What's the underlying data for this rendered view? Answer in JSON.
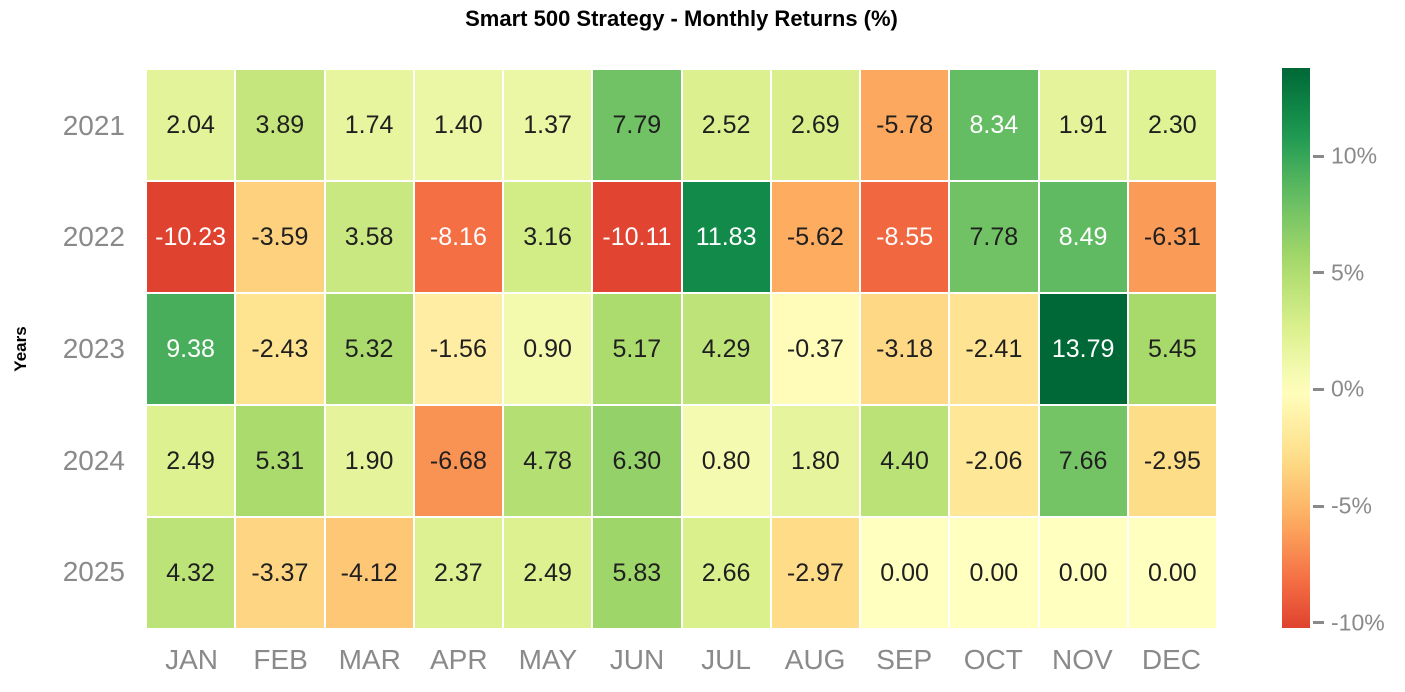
{
  "title": "Smart 500 Strategy - Monthly Returns (%)",
  "colors": {
    "background": "#ffffff",
    "title_text": "#000000",
    "axis_label_text": "#000000",
    "tick_label_text": "#8a8a8a",
    "cell_text_dark": "#1f1f1f",
    "cell_text_light": "#ffffff",
    "cell_gap": "#ffffff"
  },
  "chart_data": {
    "type": "heatmap",
    "title": "Smart 500 Strategy - Monthly Returns (%)",
    "xlabel": "",
    "ylabel": "Years",
    "x_categories": [
      "JAN",
      "FEB",
      "MAR",
      "APR",
      "MAY",
      "JUN",
      "JUL",
      "AUG",
      "SEP",
      "OCT",
      "NOV",
      "DEC"
    ],
    "y_categories": [
      "2021",
      "2022",
      "2023",
      "2024",
      "2025"
    ],
    "values": [
      [
        2.04,
        3.89,
        1.74,
        1.4,
        1.37,
        7.79,
        2.52,
        2.69,
        -5.78,
        8.34,
        1.91,
        2.3
      ],
      [
        -10.23,
        -3.59,
        3.58,
        -8.16,
        3.16,
        -10.11,
        11.83,
        -5.62,
        -8.55,
        7.78,
        8.49,
        -6.31
      ],
      [
        9.38,
        -2.43,
        5.32,
        -1.56,
        0.9,
        5.17,
        4.29,
        -0.37,
        -3.18,
        -2.41,
        13.79,
        5.45
      ],
      [
        2.49,
        5.31,
        1.9,
        -6.68,
        4.78,
        6.3,
        0.8,
        1.8,
        4.4,
        -2.06,
        7.66,
        -2.95
      ],
      [
        4.32,
        -3.37,
        -4.12,
        2.37,
        2.49,
        5.83,
        2.66,
        -2.97,
        0.0,
        0.0,
        0.0,
        0.0
      ]
    ],
    "value_decimals": 2,
    "colormap": "RdYlGn",
    "color_norm": {
      "center": 0,
      "vmin": -13.79,
      "vmax": 13.79
    },
    "grid": false,
    "colorbar": {
      "position": "right",
      "display_range": [
        -10.23,
        13.79
      ],
      "tick_values": [
        10,
        5,
        0,
        -5,
        -10
      ],
      "tick_labels": [
        "10%",
        "5%",
        "0%",
        "-5%",
        "-10%"
      ]
    }
  }
}
